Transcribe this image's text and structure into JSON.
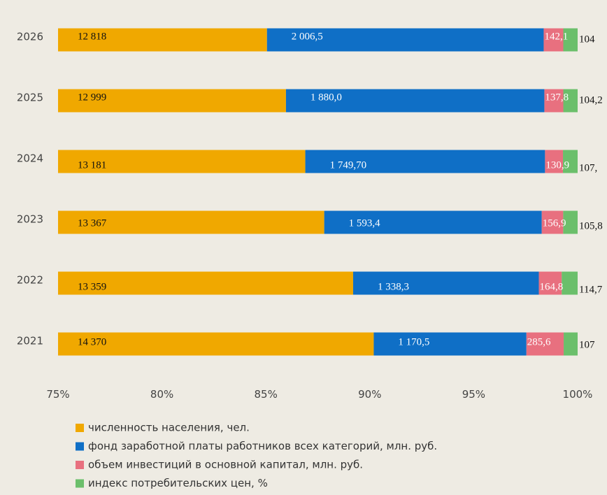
{
  "chart_data": {
    "type": "bar",
    "orientation": "horizontal",
    "stacking": "percent",
    "categories": [
      "2026",
      "2025",
      "2024",
      "2023",
      "2022",
      "2021"
    ],
    "series": [
      {
        "name": "численность населения, чел.",
        "color": "#f0a800",
        "values": [
          12818,
          12999,
          13181,
          13367,
          13359,
          14370
        ],
        "value_labels": [
          "12 818",
          "12 999",
          "13 181",
          "13 367",
          "13 359",
          "14 370"
        ]
      },
      {
        "name": "фонд заработной платы работников всех категорий, млн. руб.",
        "color": "#0f6fc6",
        "values": [
          2006.5,
          1880.0,
          1749.7,
          1593.4,
          1338.3,
          1170.5
        ],
        "value_labels": [
          "2 006,5",
          "1 880,0",
          "1 749,70",
          "1 593,4",
          "1 338,3",
          "1 170,5"
        ]
      },
      {
        "name": "объем инвестиций в основной капитал, млн. руб.",
        "color": "#e8707f",
        "values": [
          142.1,
          137.8,
          130.9,
          156.9,
          164.8,
          285.6
        ],
        "value_labels": [
          "142,1",
          "137,8",
          "130,9",
          "156,9",
          "164,8",
          "285,6"
        ]
      },
      {
        "name": "индекс потребительских цен, %",
        "color": "#6bbf6b",
        "values": [
          104,
          104.2,
          107,
          105.8,
          114.7,
          107
        ],
        "value_labels": [
          "104",
          "104,2",
          "107,",
          "105,8",
          "114,7",
          "107"
        ]
      }
    ],
    "xlim": [
      75,
      100
    ],
    "xticks": [
      {
        "value": 75,
        "label": "75%"
      },
      {
        "value": 80,
        "label": "80%"
      },
      {
        "value": 85,
        "label": "85%"
      },
      {
        "value": 90,
        "label": "90%"
      },
      {
        "value": 95,
        "label": "95%"
      },
      {
        "value": 100,
        "label": "100%"
      }
    ],
    "legend": "bottom"
  }
}
